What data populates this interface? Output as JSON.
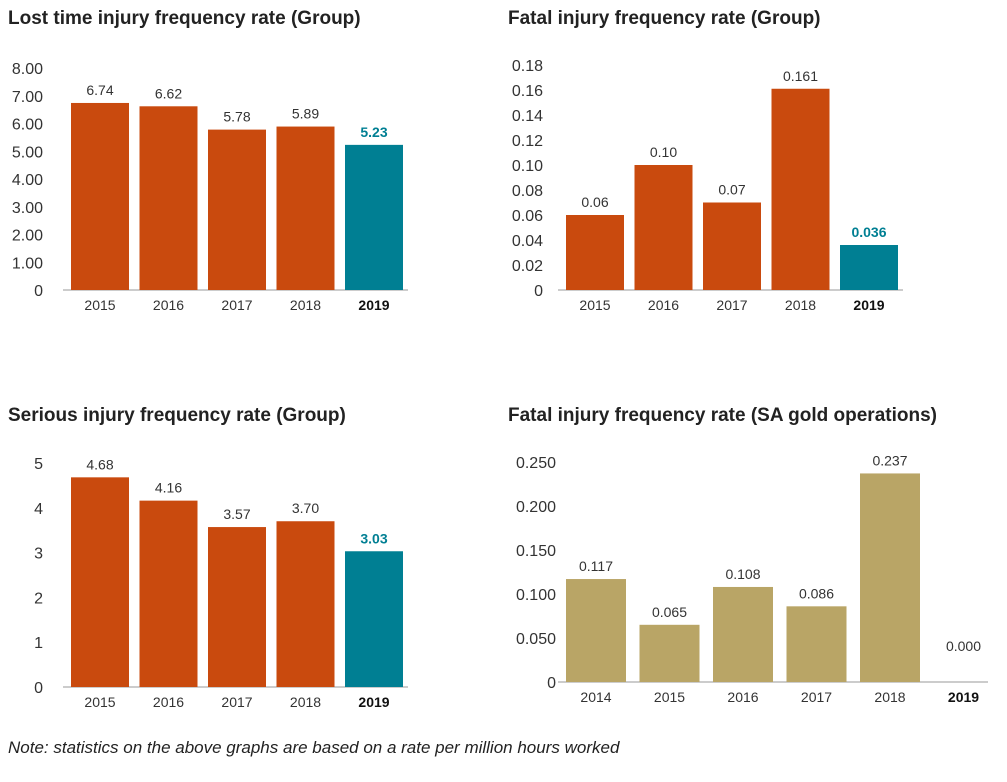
{
  "chart_data": [
    {
      "type": "bar",
      "title": "Lost time injury frequency rate (Group)",
      "categories": [
        "2015",
        "2016",
        "2017",
        "2018",
        "2019"
      ],
      "values": [
        6.74,
        6.62,
        5.78,
        5.89,
        5.23
      ],
      "value_labels": [
        "6.74",
        "6.62",
        "5.78",
        "5.89",
        "5.23"
      ],
      "highlight_index": 4,
      "ylim": [
        0,
        8
      ],
      "yticks": [
        "0",
        "1.00",
        "2.00",
        "3.00",
        "4.00",
        "5.00",
        "6.00",
        "7.00",
        "8.00"
      ],
      "ytick_values": [
        0,
        1,
        2,
        3,
        4,
        5,
        6,
        7,
        8
      ],
      "bar_color": "#C94A0E",
      "highlight_color": "#007F93",
      "xlabel": "",
      "ylabel": ""
    },
    {
      "type": "bar",
      "title": "Fatal injury frequency rate (Group)",
      "categories": [
        "2015",
        "2016",
        "2017",
        "2018",
        "2019"
      ],
      "values": [
        0.06,
        0.1,
        0.07,
        0.161,
        0.036
      ],
      "value_labels": [
        "0.06",
        "0.10",
        "0.07",
        "0.161",
        "0.036"
      ],
      "highlight_index": 4,
      "ylim": [
        0,
        0.18
      ],
      "yticks": [
        "0",
        "0.02",
        "0.04",
        "0.06",
        "0.08",
        "0.10",
        "0.12",
        "0.14",
        "0.16",
        "0.18"
      ],
      "ytick_values": [
        0,
        0.02,
        0.04,
        0.06,
        0.08,
        0.1,
        0.12,
        0.14,
        0.16,
        0.18
      ],
      "bar_color": "#C94A0E",
      "highlight_color": "#007F93",
      "xlabel": "",
      "ylabel": ""
    },
    {
      "type": "bar",
      "title": "Serious injury frequency rate (Group)",
      "categories": [
        "2015",
        "2016",
        "2017",
        "2018",
        "2019"
      ],
      "values": [
        4.68,
        4.16,
        3.57,
        3.7,
        3.03
      ],
      "value_labels": [
        "4.68",
        "4.16",
        "3.57",
        "3.70",
        "3.03"
      ],
      "highlight_index": 4,
      "ylim": [
        0,
        5
      ],
      "yticks": [
        "0",
        "1",
        "2",
        "3",
        "4",
        "5"
      ],
      "ytick_values": [
        0,
        1,
        2,
        3,
        4,
        5
      ],
      "bar_color": "#C94A0E",
      "highlight_color": "#007F93",
      "xlabel": "",
      "ylabel": ""
    },
    {
      "type": "bar",
      "title": "Fatal injury frequency rate (SA gold operations)",
      "categories": [
        "2014",
        "2015",
        "2016",
        "2017",
        "2018",
        "2019"
      ],
      "values": [
        0.117,
        0.065,
        0.108,
        0.086,
        0.237,
        0.0
      ],
      "value_labels": [
        "0.117",
        "0.065",
        "0.108",
        "0.086",
        "0.237",
        "0.000"
      ],
      "highlight_index": 5,
      "ylim": [
        0,
        0.25
      ],
      "yticks": [
        "0",
        "0.050",
        "0.100",
        "0.150",
        "0.200",
        "0.250"
      ],
      "ytick_values": [
        0,
        0.05,
        0.1,
        0.15,
        0.2,
        0.25
      ],
      "bar_color": "#B9A566",
      "highlight_color": "#B9A566",
      "xlabel": "",
      "ylabel": ""
    }
  ],
  "note": "Note: statistics on the above graphs are based on a rate per million hours worked"
}
